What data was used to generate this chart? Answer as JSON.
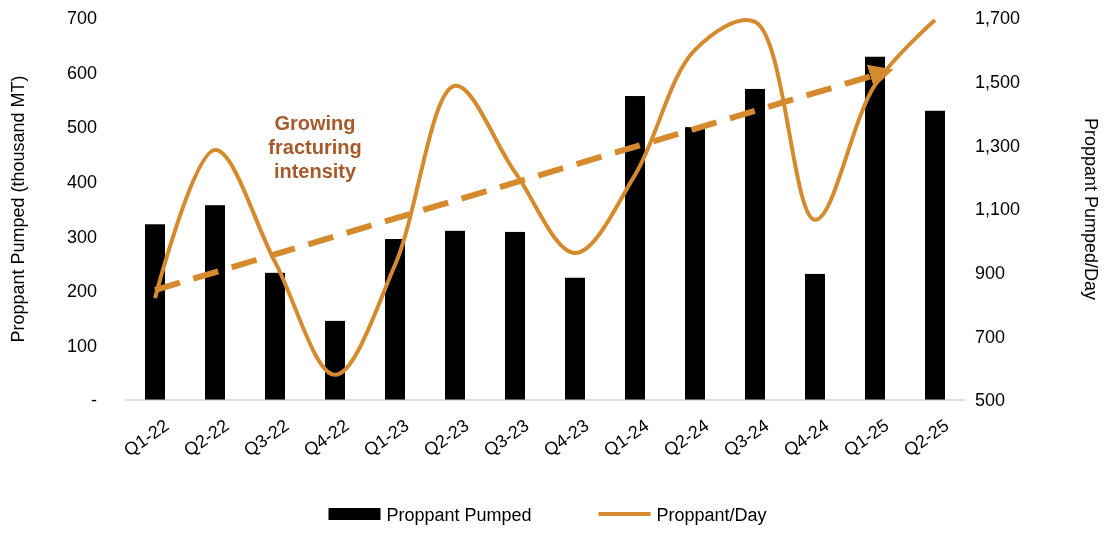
{
  "chart_data": {
    "type": "bar",
    "ylabel": "Proppant Pumped (thousand MT)",
    "y2label": "Proppant Pumped/Day",
    "categories": [
      "Q1-22",
      "Q2-22",
      "Q3-22",
      "Q4-22",
      "Q1-23",
      "Q2-23",
      "Q3-23",
      "Q4-23",
      "Q1-24",
      "Q2-24",
      "Q3-24",
      "Q4-24",
      "Q1-25",
      "Q2-25"
    ],
    "series": [
      {
        "name": "Proppant Pumped",
        "color": "#000000",
        "values": [
          322,
          357,
          233,
          145,
          295,
          310,
          308,
          224,
          557,
          500,
          570,
          231,
          629,
          530
        ]
      },
      {
        "name": "Proppant/Day",
        "type": "line",
        "axis": "y2",
        "color": "#d68a2e",
        "values": [
          820,
          1285,
          934,
          579,
          924,
          1487,
          1216,
          962,
          1207,
          1600,
          1688,
          1066,
          1490,
          1694
        ]
      },
      {
        "type": "line",
        "axis": "y2",
        "color": "#d68a2e",
        "line_style": "dashed",
        "values": [
          845,
          null,
          null,
          null,
          null,
          null,
          null,
          null,
          null,
          null,
          null,
          null,
          1521,
          null
        ]
      }
    ],
    "ylim": [
      0,
      700
    ],
    "yticks": [
      {
        "value": 0,
        "label": "-"
      },
      100,
      200,
      300,
      400,
      500,
      600,
      700
    ],
    "y2lim": [
      500,
      1700
    ],
    "y2ticks": [
      {
        "value": 500,
        "label": "500"
      },
      {
        "value": 700,
        "label": "700"
      },
      {
        "value": 900,
        "label": "900"
      },
      {
        "value": 1100,
        "label": "1,100"
      },
      {
        "value": 1300,
        "label": "1,300"
      },
      {
        "value": 1500,
        "label": "1,500"
      },
      {
        "value": 1700,
        "label": "1,700"
      }
    ],
    "annotations": [
      "Growing fracturing intensity"
    ],
    "legend": "bottom",
    "grid": false
  }
}
